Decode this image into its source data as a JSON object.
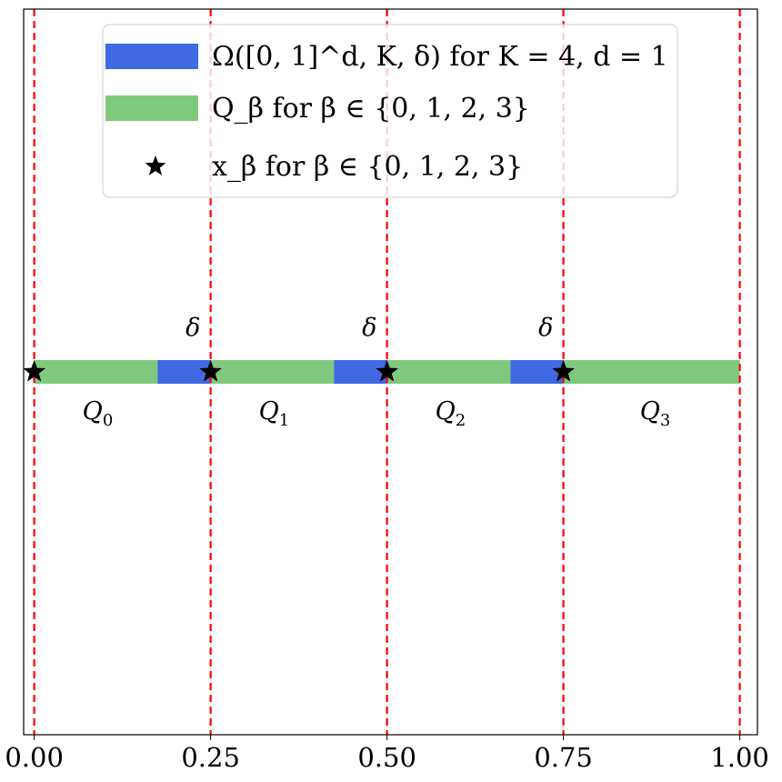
{
  "chart_data": {
    "type": "bar",
    "title": "",
    "xlabel": "",
    "ylabel": "",
    "xlim": [
      -0.015,
      1.025
    ],
    "ylim": [
      -1,
      1
    ],
    "grid": false,
    "legend_position": "top-center",
    "x_ticks": [
      {
        "value": 0.0,
        "label": "0.00"
      },
      {
        "value": 0.25,
        "label": "0.25"
      },
      {
        "value": 0.5,
        "label": "0.50"
      },
      {
        "value": 0.75,
        "label": "0.75"
      },
      {
        "value": 1.0,
        "label": "1.00"
      }
    ],
    "vertical_dashed_lines": [
      0.0,
      0.25,
      0.5,
      0.75,
      1.0
    ],
    "series": [
      {
        "name": "Ω([0, 1]^d, K, δ) for K = 4, d = 1",
        "kind": "band",
        "color": "#4169e1",
        "intervals": [
          [
            0.0,
            1.0
          ]
        ]
      },
      {
        "name": "Q_β for β ∈ {0, 1, 2, 3}",
        "kind": "band",
        "color": "#7fc97f",
        "intervals": [
          [
            0.0,
            0.175
          ],
          [
            0.25,
            0.425
          ],
          [
            0.5,
            0.675
          ],
          [
            0.75,
            1.0
          ]
        ]
      },
      {
        "name": "x_β for β ∈ {0, 1, 2, 3}",
        "kind": "marker",
        "marker": "star",
        "color": "#000000",
        "x": [
          0.0,
          0.25,
          0.5,
          0.75
        ],
        "y": [
          0,
          0,
          0,
          0
        ]
      }
    ],
    "annotations": [
      {
        "text": "δ",
        "x": 0.225,
        "y": 0.1
      },
      {
        "text": "δ",
        "x": 0.475,
        "y": 0.1
      },
      {
        "text": "δ",
        "x": 0.725,
        "y": 0.1
      },
      {
        "text": "Q",
        "sub": "0",
        "x": 0.09,
        "y": -0.13
      },
      {
        "text": "Q",
        "sub": "1",
        "x": 0.34,
        "y": -0.13
      },
      {
        "text": "Q",
        "sub": "2",
        "x": 0.59,
        "y": -0.13
      },
      {
        "text": "Q",
        "sub": "3",
        "x": 0.88,
        "y": -0.13
      }
    ]
  }
}
